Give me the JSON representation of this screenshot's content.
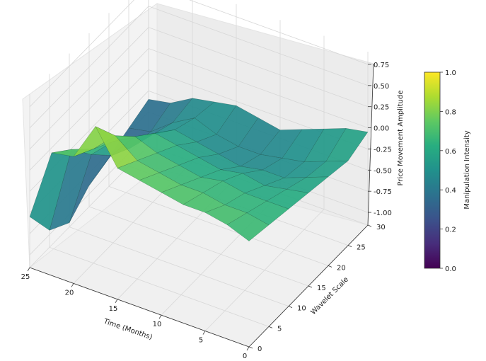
{
  "chart_data": {
    "type": "surface3d",
    "x_axis": {
      "label": "Time (Months)",
      "ticks": [
        0,
        5,
        10,
        15,
        20,
        25
      ],
      "range": [
        0,
        25
      ]
    },
    "y_axis": {
      "label": "Wavelet Scale",
      "ticks": [
        0,
        5,
        10,
        15,
        20,
        25,
        30
      ],
      "range": [
        0,
        30
      ]
    },
    "z_axis": {
      "label": "Price Movement Amplitude",
      "ticks": [
        "-1.00",
        "-0.75",
        "-0.50",
        "-0.25",
        "0.00",
        "0.25",
        "0.50",
        "0.75"
      ],
      "range": [
        -1.15,
        0.9
      ]
    },
    "colorbar": {
      "label": "Manipulation Intensity",
      "ticks": [
        "0.0",
        "0.2",
        "0.4",
        "0.6",
        "0.8",
        "1.0"
      ],
      "range": [
        0,
        1
      ],
      "colormap": "viridis"
    },
    "surface": {
      "note_values": "Approximate surface heights at sampled (time, scale) grid; rows = time 25→0, cols = scale 0→30",
      "time": [
        25,
        22.5,
        20,
        17.5,
        15,
        12.5,
        10,
        7.5,
        5,
        2.5,
        0
      ],
      "scale": [
        0,
        5,
        10,
        15,
        20,
        25,
        30
      ],
      "z": [
        [
          -0.55,
          -0.95,
          -1.1,
          -0.9,
          -0.8,
          -0.7,
          -0.6
        ],
        [
          0.3,
          0.1,
          -0.2,
          -0.45,
          -0.6,
          -0.65,
          -0.55
        ],
        [
          0.35,
          0.2,
          0.05,
          -0.15,
          -0.35,
          -0.45,
          -0.4
        ],
        [
          0.8,
          0.45,
          0.2,
          0.0,
          -0.2,
          -0.3,
          -0.35
        ],
        [
          0.4,
          0.25,
          0.1,
          -0.05,
          -0.25,
          -0.4,
          -0.3
        ],
        [
          0.35,
          0.2,
          0.05,
          -0.1,
          -0.3,
          -0.45,
          -0.35
        ],
        [
          0.3,
          0.15,
          0.0,
          -0.15,
          -0.35,
          -0.45,
          -0.4
        ],
        [
          0.25,
          0.15,
          0.05,
          -0.1,
          -0.3,
          -0.4,
          -0.3
        ],
        [
          0.25,
          0.1,
          0.0,
          -0.15,
          -0.3,
          -0.35,
          -0.2
        ],
        [
          0.2,
          0.1,
          0.0,
          -0.1,
          -0.2,
          -0.25,
          -0.1
        ],
        [
          0.1,
          0.05,
          0.0,
          -0.05,
          -0.1,
          -0.15,
          -0.05
        ]
      ]
    },
    "grid": true,
    "legend": "colorbar-right"
  }
}
